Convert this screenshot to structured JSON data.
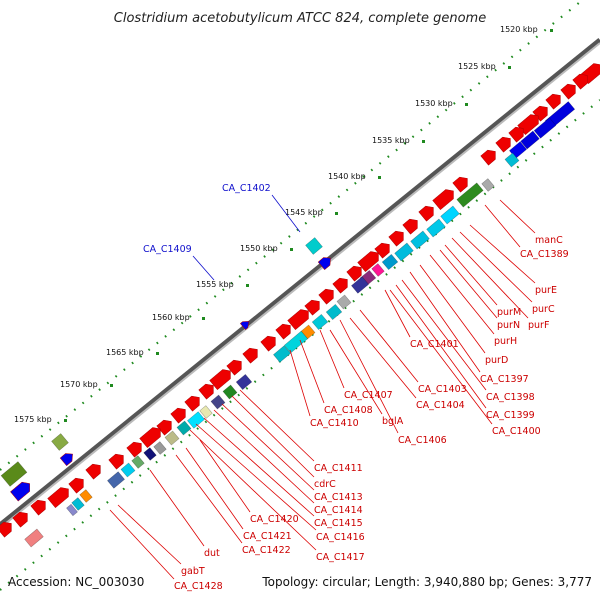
{
  "map": {
    "title": "Clostridium acetobutylicum ATCC 824, complete genome",
    "accession": "Accession: NC_003030",
    "summary": "Topology: circular; Length: 3,940,880 bp; Genes: 3,777"
  },
  "ticks": [
    "1520 kbp",
    "1525 kbp",
    "1530 kbp",
    "1535 kbp",
    "1540 kbp",
    "1545 kbp",
    "1550 kbp",
    "1555 kbp",
    "1560 kbp",
    "1565 kbp",
    "1570 kbp",
    "1575 kbp"
  ],
  "blue_labels": [
    "CA_C1402",
    "CA_C1409"
  ],
  "red_labels": [
    "manC",
    "CA_C1389",
    "purE",
    "purC",
    "purF",
    "purM",
    "purN",
    "purH",
    "CA_C1401",
    "purD",
    "CA_C1397",
    "CA_C1398",
    "CA_C1399",
    "CA_C1400",
    "CA_C1403",
    "CA_C1404",
    "CA_C1407",
    "CA_C1408",
    "CA_C1410",
    "bglA",
    "CA_C1406",
    "CA_C1411",
    "cdrC",
    "CA_C1413",
    "CA_C1414",
    "CA_C1415",
    "CA_C1416",
    "CA_C1417",
    "CA_C1420",
    "CA_C1421",
    "CA_C1422",
    "dut",
    "gabT",
    "CA_C1428"
  ]
}
